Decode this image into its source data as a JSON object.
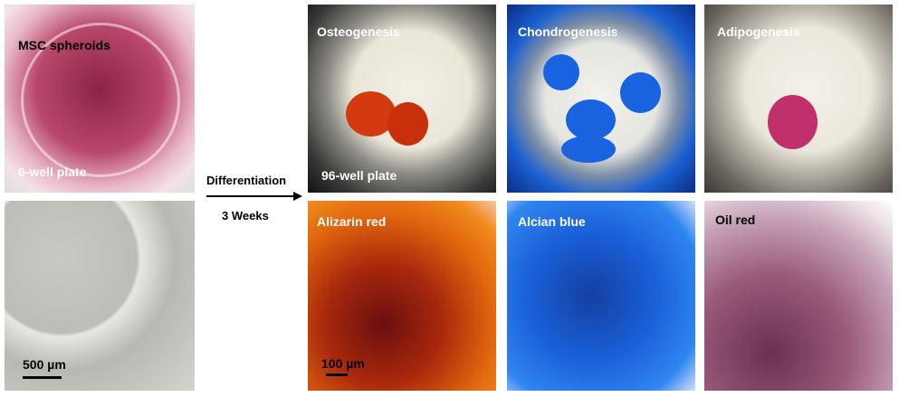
{
  "left": {
    "dish_label": "MSC spheroids",
    "plate_label": "6-well plate",
    "scale_bar": "500 µm"
  },
  "arrow": {
    "label": "Differentiation",
    "duration": "3 Weeks"
  },
  "conditions": [
    {
      "name": "Osteogenesis",
      "stain": "Alizarin red"
    },
    {
      "name": "Chondrogenesis",
      "stain": "Alcian blue"
    },
    {
      "name": "Adipogenesis",
      "stain": "Oil red"
    }
  ],
  "plate_label": "96-well plate",
  "scale_bar": "100 µm"
}
